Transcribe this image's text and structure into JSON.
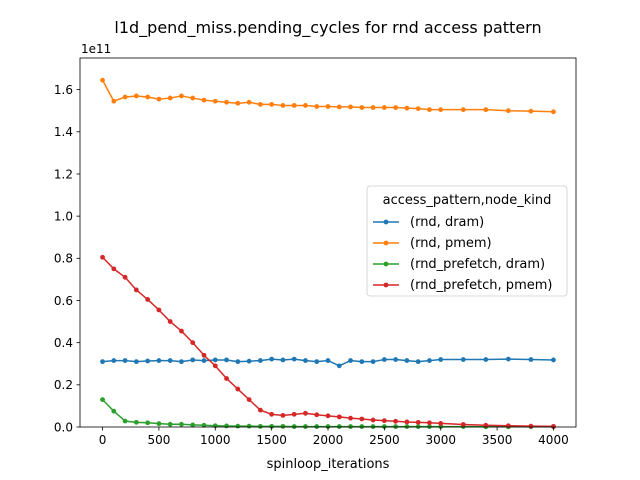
{
  "chart_data": {
    "type": "line",
    "title": "l1d_pend_miss.pending_cycles for rnd access pattern",
    "xlabel": "spinloop_iterations",
    "ylabel": "",
    "y_offset_label": "1e11",
    "xlim": [
      -200,
      4200
    ],
    "ylim": [
      0,
      1.75
    ],
    "x_ticks": [
      0,
      500,
      1000,
      1500,
      2000,
      2500,
      3000,
      3500,
      4000
    ],
    "x_tick_labels": [
      "0",
      "500",
      "1000",
      "1500",
      "2000",
      "2500",
      "3000",
      "3500",
      "4000"
    ],
    "y_ticks": [
      0.0,
      0.2,
      0.4,
      0.6,
      0.8,
      1.0,
      1.2,
      1.4,
      1.6
    ],
    "y_tick_labels": [
      "0.0",
      "0.2",
      "0.4",
      "0.6",
      "0.8",
      "1.0",
      "1.2",
      "1.4",
      "1.6"
    ],
    "grid": false,
    "legend_title": "access_pattern,node_kind",
    "legend_position": "center-right",
    "series": [
      {
        "name": "(rnd, dram)",
        "color": "#1f77b4",
        "x": [
          0,
          100,
          200,
          300,
          400,
          500,
          600,
          700,
          800,
          900,
          1000,
          1100,
          1200,
          1300,
          1400,
          1500,
          1600,
          1700,
          1800,
          1900,
          2000,
          2100,
          2200,
          2300,
          2400,
          2500,
          2600,
          2700,
          2800,
          2900,
          3000,
          3200,
          3400,
          3600,
          3800,
          4000
        ],
        "y": [
          0.31,
          0.315,
          0.315,
          0.31,
          0.313,
          0.315,
          0.315,
          0.31,
          0.318,
          0.315,
          0.318,
          0.318,
          0.31,
          0.312,
          0.315,
          0.322,
          0.318,
          0.322,
          0.315,
          0.31,
          0.315,
          0.29,
          0.315,
          0.31,
          0.31,
          0.32,
          0.32,
          0.315,
          0.31,
          0.315,
          0.32,
          0.32,
          0.32,
          0.322,
          0.32,
          0.318
        ]
      },
      {
        "name": "(rnd, pmem)",
        "color": "#ff7f0e",
        "x": [
          0,
          100,
          200,
          300,
          400,
          500,
          600,
          700,
          800,
          900,
          1000,
          1100,
          1200,
          1300,
          1400,
          1500,
          1600,
          1700,
          1800,
          1900,
          2000,
          2100,
          2200,
          2300,
          2400,
          2500,
          2600,
          2700,
          2800,
          2900,
          3000,
          3200,
          3400,
          3600,
          3800,
          4000
        ],
        "y": [
          1.645,
          1.545,
          1.565,
          1.57,
          1.565,
          1.555,
          1.56,
          1.57,
          1.56,
          1.55,
          1.545,
          1.54,
          1.535,
          1.54,
          1.53,
          1.53,
          1.525,
          1.525,
          1.525,
          1.52,
          1.52,
          1.518,
          1.518,
          1.515,
          1.515,
          1.515,
          1.515,
          1.512,
          1.51,
          1.505,
          1.505,
          1.505,
          1.505,
          1.5,
          1.498,
          1.495
        ]
      },
      {
        "name": "(rnd_prefetch, dram)",
        "color": "#2ca02c",
        "x": [
          0,
          100,
          200,
          300,
          400,
          500,
          600,
          700,
          800,
          900,
          1000,
          1100,
          1200,
          1300,
          1400,
          1500,
          1600,
          1700,
          1800,
          1900,
          2000,
          2100,
          2200,
          2300,
          2400,
          2500,
          2600,
          2700,
          2800,
          2900,
          3000,
          3200,
          3400,
          3600,
          3800,
          4000
        ],
        "y": [
          0.13,
          0.075,
          0.028,
          0.022,
          0.02,
          0.016,
          0.013,
          0.013,
          0.01,
          0.008,
          0.006,
          0.005,
          0.004,
          0.004,
          0.003,
          0.003,
          0.003,
          0.002,
          0.002,
          0.002,
          0.002,
          0.002,
          0.002,
          0.002,
          0.002,
          0.002,
          0.002,
          0.002,
          0.002,
          0.002,
          0.002,
          0.002,
          0.001,
          0.001,
          0.001,
          0.001
        ]
      },
      {
        "name": "(rnd_prefetch, pmem)",
        "color": "#d62728",
        "x": [
          0,
          100,
          200,
          300,
          400,
          500,
          600,
          700,
          800,
          900,
          1000,
          1100,
          1200,
          1300,
          1400,
          1500,
          1600,
          1700,
          1800,
          1900,
          2000,
          2100,
          2200,
          2300,
          2400,
          2500,
          2600,
          2700,
          2800,
          2900,
          3000,
          3200,
          3400,
          3600,
          3800,
          4000
        ],
        "y": [
          0.805,
          0.75,
          0.71,
          0.65,
          0.605,
          0.555,
          0.5,
          0.455,
          0.4,
          0.34,
          0.29,
          0.23,
          0.18,
          0.13,
          0.08,
          0.06,
          0.055,
          0.06,
          0.065,
          0.058,
          0.053,
          0.048,
          0.042,
          0.038,
          0.033,
          0.03,
          0.027,
          0.024,
          0.022,
          0.02,
          0.017,
          0.012,
          0.008,
          0.006,
          0.004,
          0.003
        ]
      }
    ]
  }
}
